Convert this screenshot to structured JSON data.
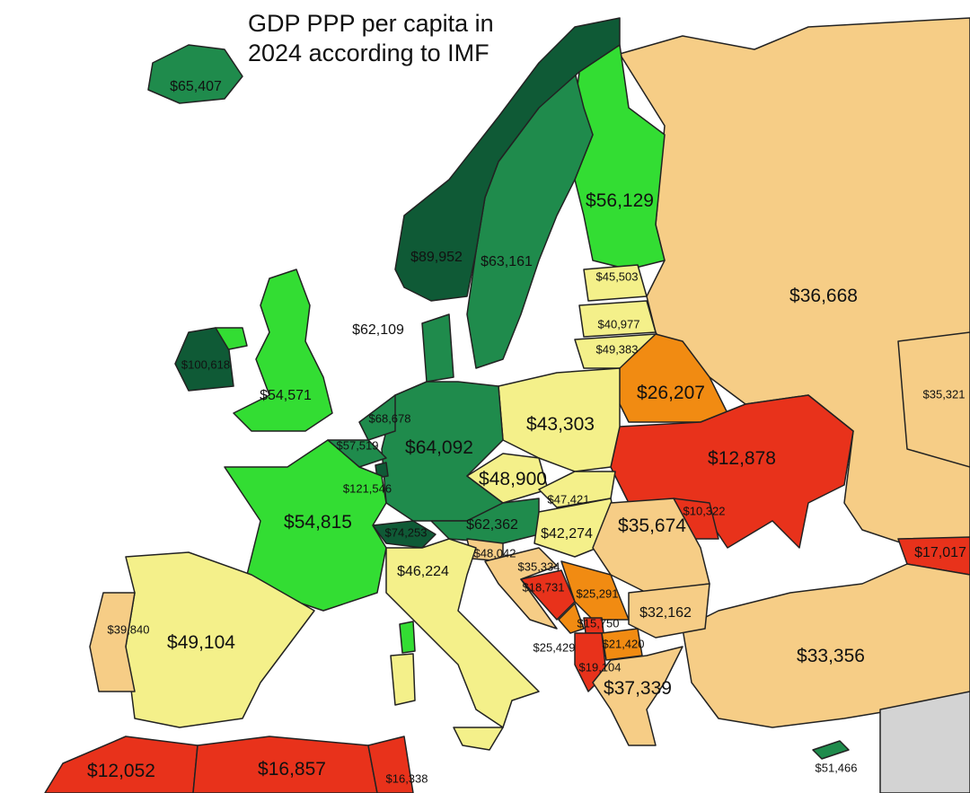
{
  "title_line1": "GDP PPP per capita in",
  "title_line2": "2024 according to IMF",
  "colors": {
    "dark_green": "#0f5a36",
    "mid_green": "#1f8b4c",
    "light_green": "#33dd33",
    "yellow": "#f4f08a",
    "tan": "#f6cd86",
    "orange": "#f18b12",
    "red": "#e8321b",
    "grey": "#d3d3d3",
    "sea": "#ffffff"
  },
  "countries": [
    {
      "id": "iceland",
      "value": "$65,407"
    },
    {
      "id": "norway",
      "value": "$89,952"
    },
    {
      "id": "sweden",
      "value": "$63,161"
    },
    {
      "id": "finland",
      "value": "$56,129"
    },
    {
      "id": "russia",
      "value": "$36,668"
    },
    {
      "id": "kazakhstan",
      "value": "$35,321"
    },
    {
      "id": "estonia",
      "value": "$45,503"
    },
    {
      "id": "latvia",
      "value": "$40,977"
    },
    {
      "id": "lithuania",
      "value": "$49,383"
    },
    {
      "id": "denmark",
      "value": "$62,109"
    },
    {
      "id": "ireland",
      "value": "$100,618"
    },
    {
      "id": "uk",
      "value": "$54,571"
    },
    {
      "id": "netherlands",
      "value": "$68,678"
    },
    {
      "id": "belgium",
      "value": "$57,519"
    },
    {
      "id": "luxembourg",
      "value": "$121,546"
    },
    {
      "id": "germany",
      "value": "$64,092"
    },
    {
      "id": "poland",
      "value": "$43,303"
    },
    {
      "id": "belarus",
      "value": "$26,207"
    },
    {
      "id": "ukraine",
      "value": "$12,878"
    },
    {
      "id": "moldova",
      "value": "$10,322"
    },
    {
      "id": "czechia",
      "value": "$48,900"
    },
    {
      "id": "slovakia",
      "value": "$47,421"
    },
    {
      "id": "france",
      "value": "$54,815"
    },
    {
      "id": "switzerland",
      "value": "$74,253"
    },
    {
      "id": "austria",
      "value": "$62,362"
    },
    {
      "id": "hungary",
      "value": "$42,274"
    },
    {
      "id": "romania",
      "value": "$35,674"
    },
    {
      "id": "georgia",
      "value": "$17,017"
    },
    {
      "id": "slovenia",
      "value": "$48,042"
    },
    {
      "id": "croatia",
      "value": "$35,334"
    },
    {
      "id": "italy",
      "value": "$46,224"
    },
    {
      "id": "bosnia",
      "value": "$18,731"
    },
    {
      "id": "serbia",
      "value": "$25,291"
    },
    {
      "id": "montenegro",
      "value": "$25,429"
    },
    {
      "id": "kosovo",
      "value": "$15,750"
    },
    {
      "id": "north_macedonia",
      "value": "$21,420"
    },
    {
      "id": "albania",
      "value": "$19,104"
    },
    {
      "id": "bulgaria",
      "value": "$32,162"
    },
    {
      "id": "greece",
      "value": "$37,339"
    },
    {
      "id": "turkey",
      "value": "$33,356"
    },
    {
      "id": "portugal",
      "value": "$39,840"
    },
    {
      "id": "spain",
      "value": "$49,104"
    },
    {
      "id": "morocco",
      "value": "$12,052"
    },
    {
      "id": "algeria",
      "value": "$16,857"
    },
    {
      "id": "tunisia",
      "value": "$16,338"
    },
    {
      "id": "cyprus",
      "value": "$51,466"
    }
  ]
}
